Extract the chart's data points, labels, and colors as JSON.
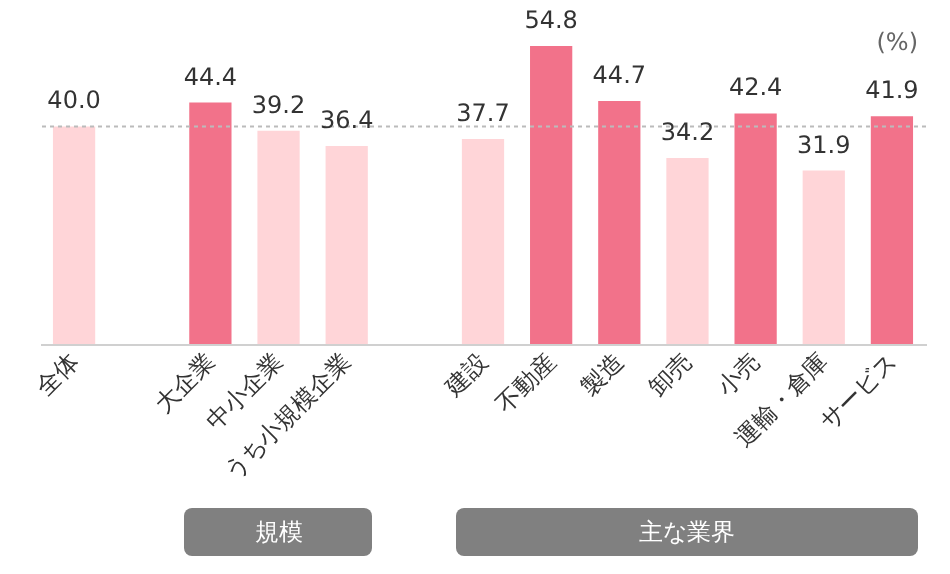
{
  "chart_data": {
    "type": "bar",
    "categories": [
      "全体",
      null,
      "大企業",
      "中小企業",
      "うち小規模企業",
      null,
      "建設",
      "不動産",
      "製造",
      "卸売",
      "小売",
      "運輸・倉庫",
      "サービス"
    ],
    "values": [
      40.0,
      null,
      44.4,
      39.2,
      36.4,
      null,
      37.7,
      54.8,
      44.7,
      34.2,
      42.4,
      31.9,
      41.9
    ],
    "colors": [
      "#ffd5d8",
      "#ffd5d8",
      "#f2728a",
      "#ffd5d8",
      "#ffd5d8",
      "#ffd5d8",
      "#ffd5d8",
      "#f2728a",
      "#f2728a",
      "#ffd5d8",
      "#f2728a",
      "#ffd5d8",
      "#f2728a"
    ],
    "value_labels": [
      "40.0",
      null,
      "44.4",
      "39.2",
      "36.4",
      null,
      "37.7",
      "54.8",
      "44.7",
      "34.2",
      "42.4",
      "31.9",
      "41.9"
    ],
    "tick_labels": "x",
    "ref_lines": [
      {
        "axis": "y",
        "value": 40.0,
        "color": "#bbbbbb",
        "line_style": "dotted"
      }
    ],
    "annotations": [
      "(%)",
      "規模",
      "主な業界"
    ]
  }
}
